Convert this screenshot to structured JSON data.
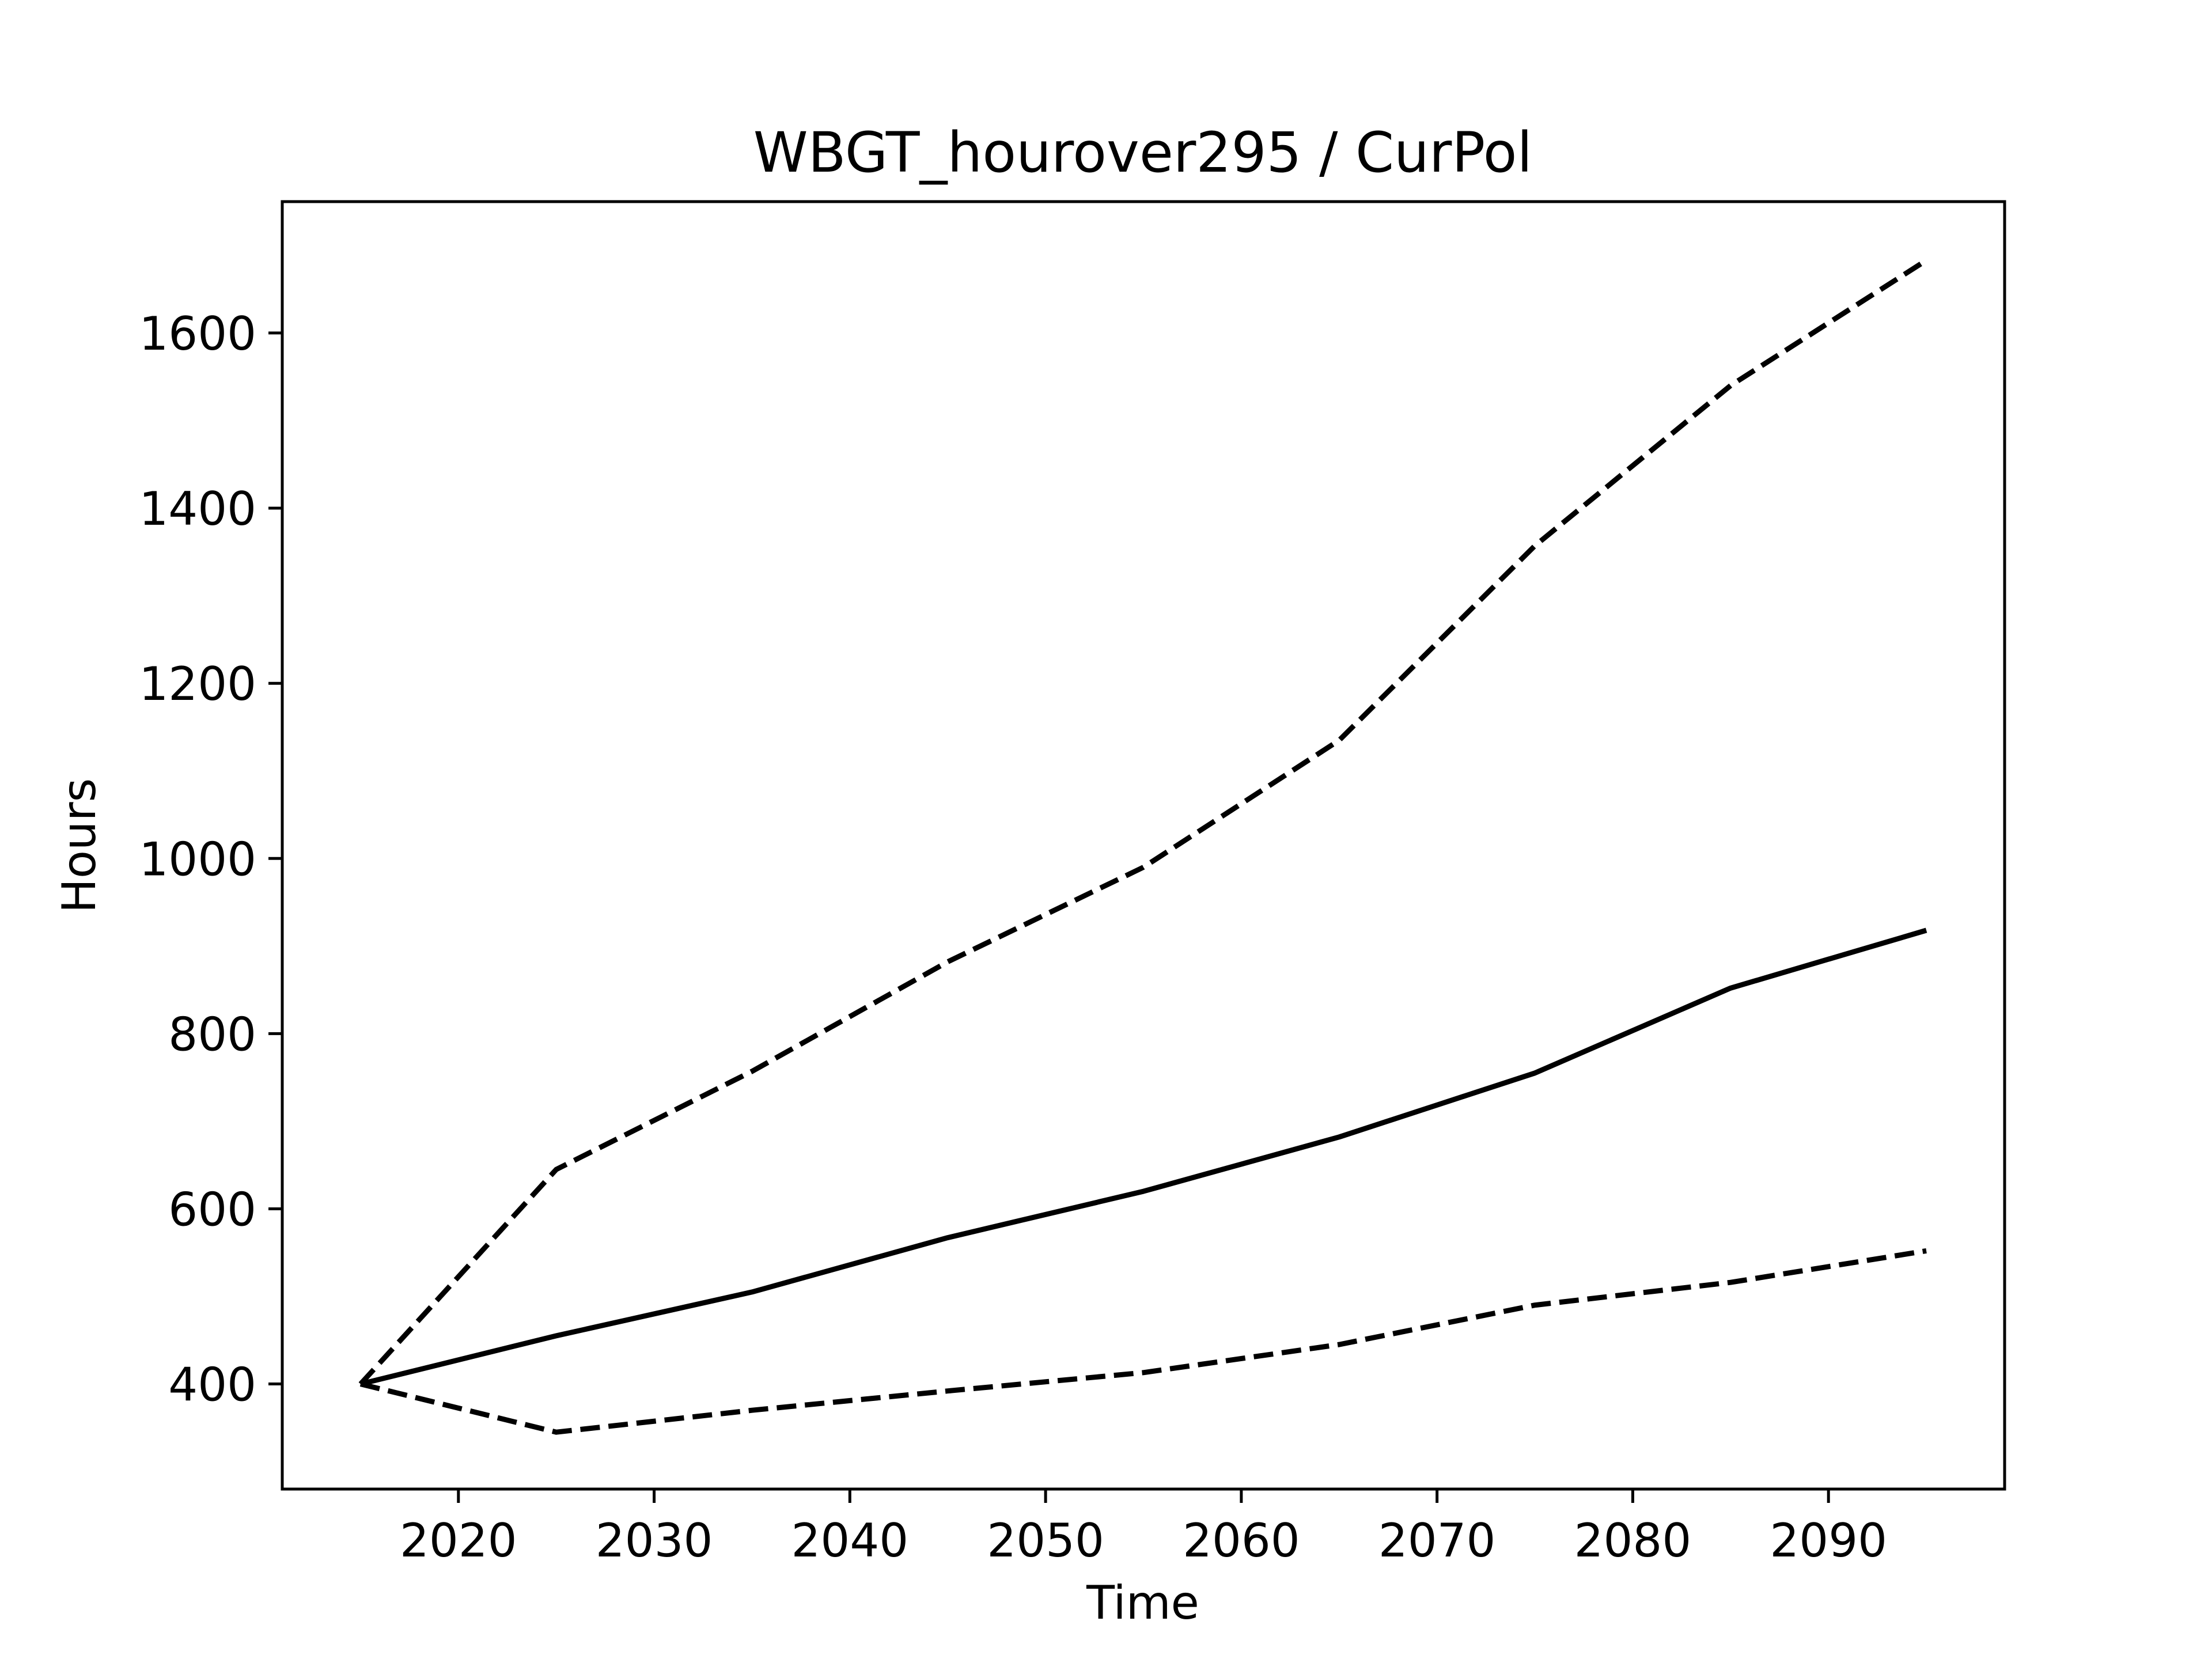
{
  "chart_data": {
    "type": "line",
    "title": "WBGT_hourover295 / CurPol",
    "xlabel": "Time",
    "ylabel": "Hours",
    "xlim": [
      2011,
      2099
    ],
    "ylim": [
      280,
      1750
    ],
    "xticks": [
      2020,
      2030,
      2040,
      2050,
      2060,
      2070,
      2080,
      2090
    ],
    "yticks": [
      400,
      600,
      800,
      1000,
      1200,
      1400,
      1600
    ],
    "grid": false,
    "x": [
      2015,
      2025,
      2035,
      2045,
      2055,
      2065,
      2075,
      2085,
      2095
    ],
    "series": [
      {
        "style": "dashed",
        "color": "#000000",
        "values": [
          400,
          645,
          757,
          882,
          990,
          1135,
          1357,
          1540,
          1683
        ]
      },
      {
        "style": "solid",
        "color": "#000000",
        "values": [
          400,
          455,
          505,
          567,
          620,
          682,
          755,
          852,
          918
        ]
      },
      {
        "style": "dashed",
        "color": "#000000",
        "values": [
          400,
          345,
          370,
          392,
          413,
          445,
          490,
          516,
          552
        ]
      }
    ]
  }
}
